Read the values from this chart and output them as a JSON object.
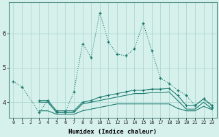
{
  "xlabel": "Humidex (Indice chaleur)",
  "x": [
    0,
    1,
    2,
    3,
    4,
    5,
    6,
    7,
    8,
    9,
    10,
    11,
    12,
    13,
    14,
    15,
    16,
    17,
    18,
    19,
    20,
    21,
    22,
    23
  ],
  "series1": [
    4.6,
    4.45,
    null,
    3.7,
    4.05,
    3.7,
    3.7,
    4.3,
    5.7,
    5.3,
    6.6,
    5.75,
    5.4,
    5.35,
    5.55,
    6.3,
    5.5,
    4.7,
    4.55,
    4.35,
    4.2,
    3.9,
    4.1,
    3.85
  ],
  "series2": [
    null,
    null,
    null,
    4.05,
    4.05,
    3.75,
    3.75,
    3.75,
    4.0,
    4.05,
    4.15,
    4.2,
    4.25,
    4.3,
    4.35,
    4.35,
    4.38,
    4.38,
    4.4,
    4.2,
    3.9,
    3.9,
    4.1,
    3.9
  ],
  "series3": [
    null,
    null,
    null,
    4.0,
    4.0,
    3.7,
    3.7,
    3.7,
    3.95,
    4.0,
    4.05,
    4.1,
    4.15,
    4.2,
    4.25,
    4.25,
    4.28,
    4.28,
    4.3,
    4.05,
    3.8,
    3.8,
    4.0,
    3.8
  ],
  "series4": [
    null,
    null,
    null,
    3.75,
    3.75,
    3.65,
    3.65,
    3.65,
    3.75,
    3.8,
    3.85,
    3.9,
    3.95,
    3.95,
    3.95,
    3.95,
    3.95,
    3.95,
    3.95,
    3.82,
    3.75,
    3.75,
    3.88,
    3.78
  ],
  "line_color": "#1a7a6e",
  "bg_color": "#d6f0ec",
  "grid_color": "#aed8d2",
  "yticks": [
    4,
    5,
    6
  ],
  "ylim": [
    3.55,
    6.9
  ],
  "xlim": [
    -0.5,
    23.5
  ]
}
